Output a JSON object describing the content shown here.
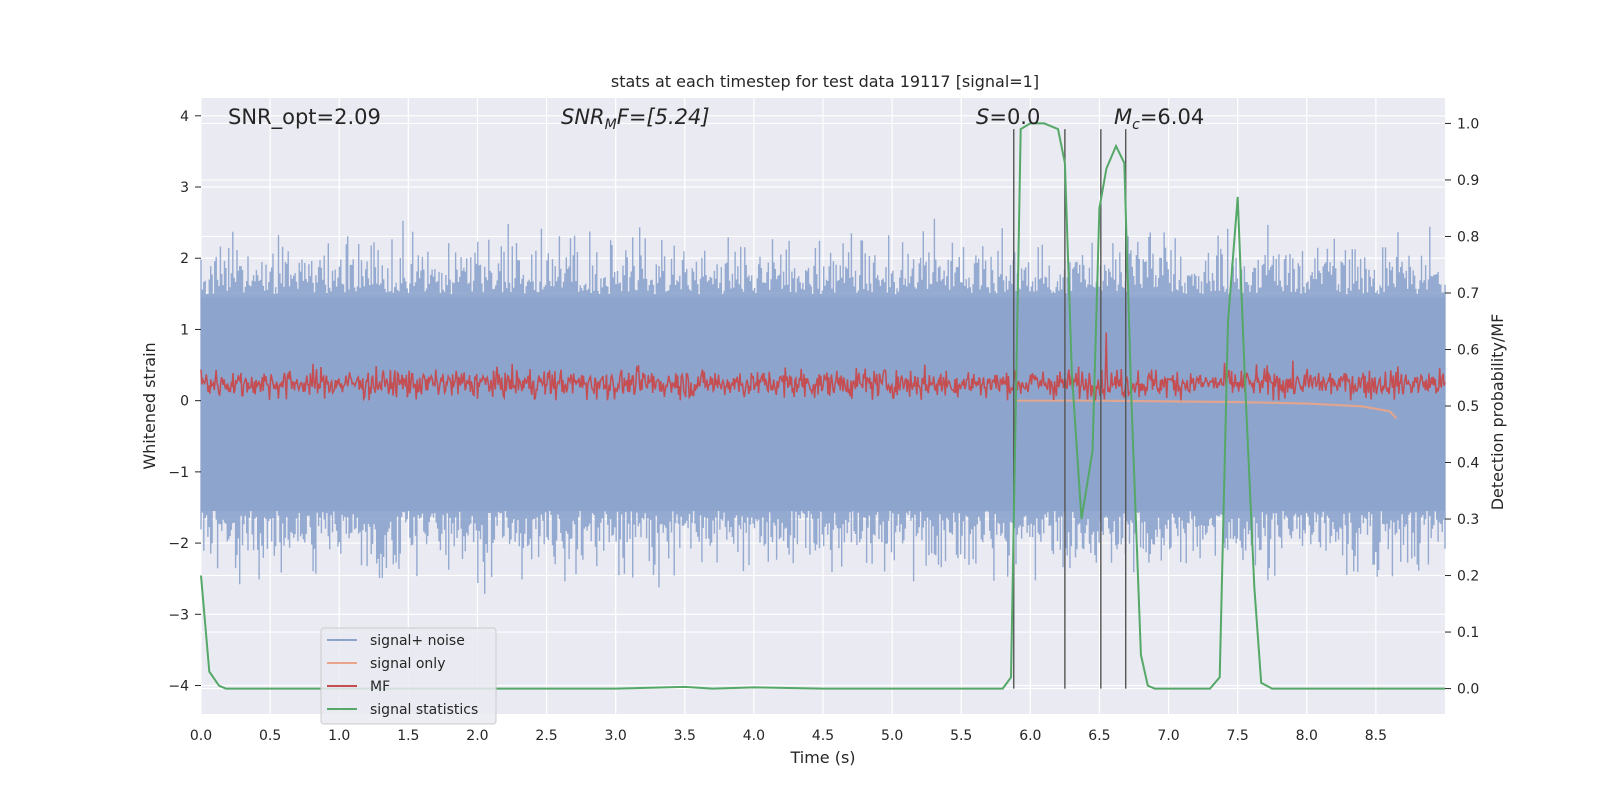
{
  "chart_data": {
    "type": "line",
    "title": "stats at each timestep for test data 19117 [signal=1]",
    "xlabel": "Time (s)",
    "ylabel_left": "Whitened strain",
    "ylabel_right": "Detection probability/MF",
    "xlim": [
      0.0,
      9.0
    ],
    "ylim_left": [
      -4.4,
      4.25
    ],
    "ylim_right": [
      -0.045,
      1.045
    ],
    "grid": true,
    "background": "#EAEAF2",
    "legend_placement": "lower-left",
    "x_ticks": [
      "0.0",
      "0.5",
      "1.0",
      "1.5",
      "2.0",
      "2.5",
      "3.0",
      "3.5",
      "4.0",
      "4.5",
      "5.0",
      "5.5",
      "6.0",
      "6.5",
      "7.0",
      "7.5",
      "8.0",
      "8.5"
    ],
    "y_ticks_left": [
      "4",
      "3",
      "2",
      "1",
      "0",
      "−1",
      "−2",
      "−3",
      "−4"
    ],
    "y_ticks_right": [
      "1.0",
      "0.9",
      "0.8",
      "0.7",
      "0.6",
      "0.5",
      "0.4",
      "0.3",
      "0.2",
      "0.1",
      "0.0"
    ],
    "annotations": {
      "snr_opt": "SNR_opt=2.09",
      "snr_mf_main": "SNR",
      "snr_mf_sub": "M",
      "snr_mf_rest": "F=[5.24]",
      "s_main": "S",
      "s_rest": "=0.0",
      "mc_main": "M",
      "mc_sub": "c",
      "mc_rest": "=6.04"
    },
    "series": [
      {
        "name": "signal+ noise",
        "color": "#8CA3CC",
        "note": "dense noisy strain spanning roughly -3.5 to 3.9 across the full time range",
        "envelope": {
          "x": [
            0.0,
            9.0
          ],
          "y_min": -2.2,
          "y_max": 2.3
        }
      },
      {
        "name": "signal only",
        "color": "#E8A58A",
        "x": [
          5.9,
          6.5,
          7.0,
          7.5,
          8.0,
          8.4,
          8.6,
          8.65
        ],
        "y": [
          0.0,
          0.0,
          -0.01,
          -0.02,
          -0.04,
          -0.08,
          -0.15,
          -0.25
        ]
      },
      {
        "name": "MF",
        "color": "#C44E52",
        "note": "matched-filter output on right axis, fluctuating about 0.54 with range ~0.50–0.60; spike near t=6.55",
        "center": 0.54,
        "band": [
          0.51,
          0.6
        ]
      },
      {
        "name": "signal statistics",
        "color": "#55A868",
        "axis": "right",
        "x": [
          0.0,
          0.06,
          0.13,
          0.18,
          0.3,
          1.0,
          2.0,
          3.0,
          3.5,
          3.7,
          4.0,
          4.5,
          5.0,
          5.5,
          5.8,
          5.86,
          5.93,
          6.0,
          6.1,
          6.2,
          6.25,
          6.3,
          6.37,
          6.45,
          6.5,
          6.55,
          6.62,
          6.68,
          6.73,
          6.8,
          6.85,
          6.9,
          7.0,
          7.2,
          7.3,
          7.37,
          7.43,
          7.5,
          7.55,
          7.62,
          7.67,
          7.75,
          8.0,
          9.0
        ],
        "y": [
          0.2,
          0.03,
          0.005,
          0.0,
          0.0,
          0.0,
          0.0,
          0.0,
          0.003,
          0.0,
          0.002,
          0.0,
          0.0,
          0.0,
          0.0,
          0.02,
          0.99,
          1.0,
          1.0,
          0.99,
          0.93,
          0.56,
          0.3,
          0.42,
          0.85,
          0.92,
          0.96,
          0.93,
          0.52,
          0.06,
          0.005,
          0.0,
          0.0,
          0.0,
          0.0,
          0.02,
          0.65,
          0.87,
          0.56,
          0.18,
          0.01,
          0.0,
          0.0,
          0.0
        ]
      }
    ],
    "vertical_lines_x": [
      5.88,
      6.25,
      6.51,
      6.69
    ]
  }
}
